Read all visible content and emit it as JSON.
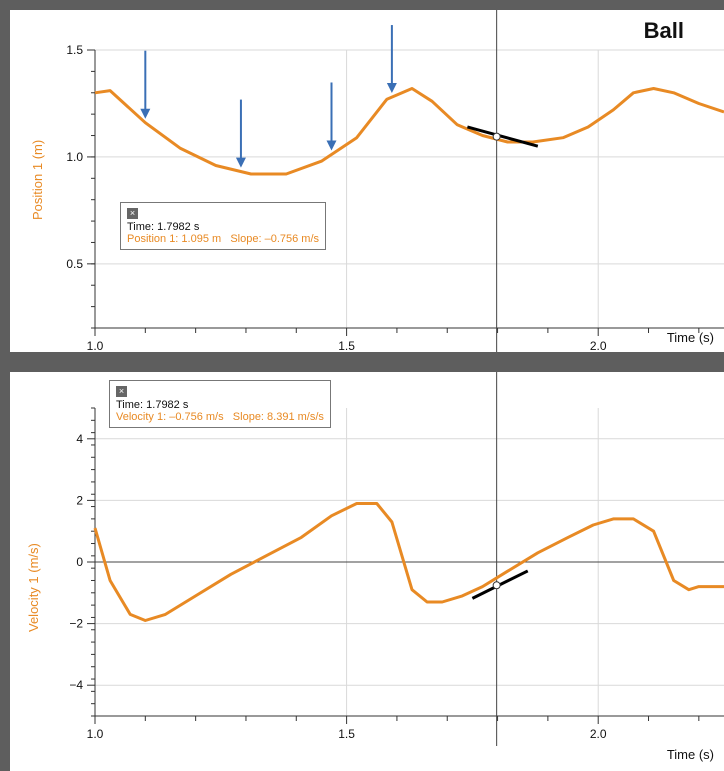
{
  "title": "Ball",
  "close_glyph": "×",
  "colors": {
    "series": "#e88a24",
    "tangent": "#000000",
    "arrow": "#3a6fb5",
    "grid": "#d9d9d9",
    "frame": "#5e5e5e"
  },
  "chart_data": [
    {
      "type": "line",
      "xlabel": "Time (s)",
      "ylabel": "Position 1 (m)",
      "xlim": [
        1.0,
        2.25
      ],
      "ylim": [
        0.2,
        1.5
      ],
      "xticks": [
        1.0,
        1.5,
        2.0
      ],
      "yticks": [
        0.5,
        1.0,
        1.5
      ],
      "xtick_labels": [
        "1.0",
        "1.5",
        "2.0"
      ],
      "ytick_labels": [
        "0.5",
        "1.0",
        "1.5"
      ],
      "grid": true,
      "series": [
        {
          "x": [
            1.0,
            1.03,
            1.1,
            1.17,
            1.24,
            1.31,
            1.38,
            1.45,
            1.52,
            1.58,
            1.63,
            1.67,
            1.72,
            1.77,
            1.82,
            1.87,
            1.93,
            1.98,
            2.03,
            2.07,
            2.11,
            2.15,
            2.2,
            2.25
          ],
          "y": [
            1.3,
            1.31,
            1.16,
            1.04,
            0.96,
            0.92,
            0.92,
            0.98,
            1.09,
            1.27,
            1.32,
            1.26,
            1.15,
            1.1,
            1.07,
            1.07,
            1.09,
            1.14,
            1.22,
            1.3,
            1.32,
            1.3,
            1.25,
            1.21
          ]
        }
      ],
      "cursor": {
        "time": 1.7982,
        "value": 1.095
      },
      "tangent": {
        "x": [
          1.74,
          1.88
        ],
        "y": [
          1.14,
          1.05
        ]
      },
      "arrows_at_x": [
        1.1,
        1.29,
        1.47,
        1.59
      ],
      "readout": {
        "time_text": "Time: 1.7982 s",
        "value_text": "Position 1: 1.095 m",
        "slope_text": "Slope: –0.756 m/s"
      }
    },
    {
      "type": "line",
      "xlabel": "Time (s)",
      "ylabel": "Velocity 1 (m/s)",
      "xlim": [
        1.0,
        2.25
      ],
      "ylim": [
        -5,
        5
      ],
      "xticks": [
        1.0,
        1.5,
        2.0
      ],
      "yticks": [
        -4,
        -2,
        0,
        2,
        4
      ],
      "xtick_labels": [
        "1.0",
        "1.5",
        "2.0"
      ],
      "ytick_labels": [
        "−4",
        "−2",
        "0",
        "2",
        "4"
      ],
      "grid": true,
      "series": [
        {
          "x": [
            1.0,
            1.03,
            1.07,
            1.1,
            1.14,
            1.2,
            1.27,
            1.34,
            1.41,
            1.47,
            1.52,
            1.56,
            1.59,
            1.63,
            1.66,
            1.69,
            1.73,
            1.77,
            1.82,
            1.88,
            1.94,
            1.99,
            2.03,
            2.07,
            2.11,
            2.15,
            2.18,
            2.2,
            2.25
          ],
          "y": [
            1.1,
            -0.6,
            -1.7,
            -1.9,
            -1.7,
            -1.1,
            -0.4,
            0.2,
            0.8,
            1.5,
            1.9,
            1.9,
            1.3,
            -0.9,
            -1.3,
            -1.3,
            -1.1,
            -0.8,
            -0.3,
            0.3,
            0.8,
            1.2,
            1.4,
            1.4,
            1.0,
            -0.6,
            -0.9,
            -0.8,
            -0.8
          ]
        }
      ],
      "cursor": {
        "time": 1.7982,
        "value": -0.756
      },
      "tangent": {
        "x": [
          1.75,
          1.86
        ],
        "y": [
          -1.18,
          -0.29
        ]
      },
      "readout": {
        "time_text": "Time: 1.7982 s",
        "value_text": "Velocity 1: –0.756 m/s",
        "slope_text": "Slope: 8.391 m/s/s"
      }
    }
  ]
}
